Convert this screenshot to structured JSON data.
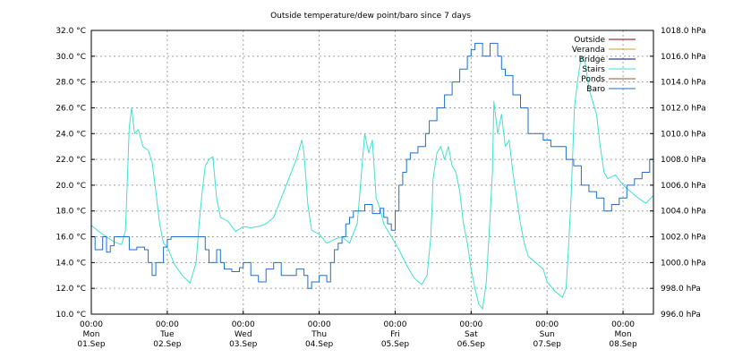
{
  "chart_data": {
    "type": "line",
    "title": "Outside temperature/dew point/baro since 7 days",
    "y_left": {
      "ticks": [
        10,
        12,
        14,
        16,
        18,
        20,
        22,
        24,
        26,
        28,
        30,
        32
      ],
      "tick_labels": [
        "10.0 °C",
        "12.0 °C",
        "14.0 °C",
        "16.0 °C",
        "18.0 °C",
        "20.0 °C",
        "22.0 °C",
        "24.0 °C",
        "26.0 °C",
        "28.0 °C",
        "30.0 °C",
        "32.0 °C"
      ],
      "range": [
        10,
        32
      ]
    },
    "y_right": {
      "ticks": [
        996,
        998,
        1000,
        1002,
        1004,
        1006,
        1008,
        1010,
        1012,
        1014,
        1016,
        1018
      ],
      "tick_labels": [
        "996.0 hPa",
        "998.0 hPa",
        "1000.0 hPa",
        "1002.0 hPa",
        "1004.0 hPa",
        "1006.0 hPa",
        "1008.0 hPa",
        "1010.0 hPa",
        "1012.0 hPa",
        "1014.0 hPa",
        "1016.0 hPa",
        "1018.0 hPa"
      ],
      "range": [
        996,
        1018
      ]
    },
    "x": {
      "range_days": [
        0,
        7.4
      ],
      "ticks": [
        {
          "day": 0,
          "time": "00:00",
          "weekday": "Mon",
          "date": "01.Sep"
        },
        {
          "day": 1,
          "time": "00:00",
          "weekday": "Tue",
          "date": "02.Sep"
        },
        {
          "day": 2,
          "time": "00:00",
          "weekday": "Wed",
          "date": "03.Sep"
        },
        {
          "day": 3,
          "time": "00:00",
          "weekday": "Thu",
          "date": "04.Sep"
        },
        {
          "day": 4,
          "time": "00:00",
          "weekday": "Fri",
          "date": "05.Sep"
        },
        {
          "day": 5,
          "time": "00:00",
          "weekday": "Sat",
          "date": "06.Sep"
        },
        {
          "day": 6,
          "time": "00:00",
          "weekday": "Sun",
          "date": "07.Sep"
        },
        {
          "day": 7,
          "time": "00:00",
          "weekday": "Mon",
          "date": "08.Sep"
        }
      ]
    },
    "legend": {
      "placement": "top-right",
      "entries": [
        {
          "name": "Outside",
          "color": "#8b0000"
        },
        {
          "name": "Veranda",
          "color": "#d4a017"
        },
        {
          "name": "Bridge",
          "color": "#00008b"
        },
        {
          "name": "Stairs",
          "color": "#40e0d0"
        },
        {
          "name": "Ponds",
          "color": "#a0522d"
        },
        {
          "name": "Baro",
          "color": "#1e6fcf"
        }
      ]
    },
    "grid": true,
    "series": [
      {
        "name": "Stairs",
        "axis": "left",
        "color": "#40e0d0",
        "points": [
          [
            0.0,
            16.9
          ],
          [
            0.1,
            16.4
          ],
          [
            0.2,
            16.0
          ],
          [
            0.3,
            15.6
          ],
          [
            0.4,
            15.4
          ],
          [
            0.45,
            16.5
          ],
          [
            0.5,
            24.5
          ],
          [
            0.53,
            26.0
          ],
          [
            0.57,
            24.0
          ],
          [
            0.62,
            24.3
          ],
          [
            0.68,
            23.0
          ],
          [
            0.75,
            22.7
          ],
          [
            0.8,
            21.8
          ],
          [
            0.85,
            19.5
          ],
          [
            0.9,
            17.0
          ],
          [
            0.95,
            15.5
          ],
          [
            1.0,
            15.2
          ],
          [
            1.05,
            14.5
          ],
          [
            1.1,
            13.8
          ],
          [
            1.2,
            13.0
          ],
          [
            1.3,
            12.4
          ],
          [
            1.38,
            14.0
          ],
          [
            1.42,
            17.0
          ],
          [
            1.46,
            19.5
          ],
          [
            1.5,
            21.5
          ],
          [
            1.55,
            22.0
          ],
          [
            1.6,
            22.2
          ],
          [
            1.65,
            19.0
          ],
          [
            1.7,
            17.5
          ],
          [
            1.8,
            17.2
          ],
          [
            1.9,
            16.4
          ],
          [
            2.0,
            16.8
          ],
          [
            2.1,
            16.7
          ],
          [
            2.2,
            16.8
          ],
          [
            2.3,
            17.0
          ],
          [
            2.4,
            17.5
          ],
          [
            2.5,
            19.0
          ],
          [
            2.6,
            20.5
          ],
          [
            2.7,
            22.0
          ],
          [
            2.77,
            23.5
          ],
          [
            2.8,
            22.5
          ],
          [
            2.85,
            18.5
          ],
          [
            2.9,
            16.5
          ],
          [
            3.0,
            16.2
          ],
          [
            3.1,
            15.5
          ],
          [
            3.2,
            15.8
          ],
          [
            3.3,
            16.0
          ],
          [
            3.4,
            15.5
          ],
          [
            3.5,
            17.0
          ],
          [
            3.53,
            19.0
          ],
          [
            3.57,
            22.0
          ],
          [
            3.6,
            24.0
          ],
          [
            3.65,
            22.5
          ],
          [
            3.7,
            23.5
          ],
          [
            3.75,
            19.0
          ],
          [
            3.8,
            18.2
          ],
          [
            3.85,
            17.0
          ],
          [
            3.95,
            16.0
          ],
          [
            4.05,
            15.0
          ],
          [
            4.15,
            13.8
          ],
          [
            4.25,
            12.8
          ],
          [
            4.35,
            12.3
          ],
          [
            4.42,
            13.0
          ],
          [
            4.47,
            16.0
          ],
          [
            4.5,
            20.5
          ],
          [
            4.55,
            22.5
          ],
          [
            4.6,
            23.0
          ],
          [
            4.65,
            22.0
          ],
          [
            4.7,
            23.0
          ],
          [
            4.75,
            21.5
          ],
          [
            4.8,
            21.0
          ],
          [
            4.85,
            19.5
          ],
          [
            4.9,
            17.0
          ],
          [
            4.95,
            15.5
          ],
          [
            5.0,
            13.5
          ],
          [
            5.05,
            12.0
          ],
          [
            5.1,
            10.8
          ],
          [
            5.15,
            10.4
          ],
          [
            5.2,
            12.5
          ],
          [
            5.25,
            17.5
          ],
          [
            5.28,
            21.0
          ],
          [
            5.3,
            26.5
          ],
          [
            5.35,
            24.0
          ],
          [
            5.4,
            25.5
          ],
          [
            5.45,
            23.0
          ],
          [
            5.5,
            23.5
          ],
          [
            5.55,
            21.0
          ],
          [
            5.6,
            19.0
          ],
          [
            5.65,
            17.0
          ],
          [
            5.7,
            15.5
          ],
          [
            5.75,
            14.5
          ],
          [
            5.85,
            14.0
          ],
          [
            5.95,
            13.5
          ],
          [
            6.0,
            12.5
          ],
          [
            6.1,
            11.8
          ],
          [
            6.2,
            11.3
          ],
          [
            6.25,
            12.0
          ],
          [
            6.28,
            15.0
          ],
          [
            6.32,
            19.5
          ],
          [
            6.36,
            26.0
          ],
          [
            6.4,
            28.0
          ],
          [
            6.45,
            30.0
          ],
          [
            6.5,
            29.5
          ],
          [
            6.55,
            27.5
          ],
          [
            6.6,
            26.5
          ],
          [
            6.65,
            25.5
          ],
          [
            6.7,
            23.0
          ],
          [
            6.75,
            21.0
          ],
          [
            6.8,
            20.5
          ],
          [
            6.9,
            20.8
          ],
          [
            7.0,
            20.0
          ],
          [
            7.1,
            19.5
          ],
          [
            7.2,
            19.0
          ],
          [
            7.3,
            18.6
          ],
          [
            7.4,
            19.2
          ]
        ]
      },
      {
        "name": "Baro",
        "axis": "right",
        "color": "#1e6fcf",
        "step": true,
        "points": [
          [
            0.0,
            1002.0
          ],
          [
            0.05,
            1001.0
          ],
          [
            0.15,
            1002.0
          ],
          [
            0.2,
            1000.8
          ],
          [
            0.25,
            1001.3
          ],
          [
            0.3,
            1002.0
          ],
          [
            0.4,
            1002.0
          ],
          [
            0.5,
            1001.0
          ],
          [
            0.6,
            1001.2
          ],
          [
            0.7,
            1001.0
          ],
          [
            0.75,
            1000.0
          ],
          [
            0.8,
            999.0
          ],
          [
            0.85,
            1000.0
          ],
          [
            0.95,
            1001.2
          ],
          [
            1.0,
            1001.8
          ],
          [
            1.05,
            1002.0
          ],
          [
            1.2,
            1002.0
          ],
          [
            1.3,
            1002.0
          ],
          [
            1.4,
            1002.0
          ],
          [
            1.5,
            1001.0
          ],
          [
            1.55,
            1000.0
          ],
          [
            1.65,
            1001.0
          ],
          [
            1.7,
            1000.0
          ],
          [
            1.75,
            999.5
          ],
          [
            1.85,
            999.3
          ],
          [
            1.95,
            999.6
          ],
          [
            2.0,
            1000.0
          ],
          [
            2.1,
            999.0
          ],
          [
            2.2,
            998.5
          ],
          [
            2.3,
            999.5
          ],
          [
            2.4,
            1000.0
          ],
          [
            2.5,
            999.0
          ],
          [
            2.6,
            999.0
          ],
          [
            2.7,
            999.5
          ],
          [
            2.8,
            999.0
          ],
          [
            2.85,
            998.0
          ],
          [
            2.9,
            998.5
          ],
          [
            3.0,
            999.0
          ],
          [
            3.1,
            998.5
          ],
          [
            3.15,
            1000.0
          ],
          [
            3.2,
            1001.0
          ],
          [
            3.25,
            1001.5
          ],
          [
            3.3,
            1002.0
          ],
          [
            3.35,
            1003.0
          ],
          [
            3.4,
            1003.5
          ],
          [
            3.45,
            1004.0
          ],
          [
            3.55,
            1004.0
          ],
          [
            3.6,
            1004.5
          ],
          [
            3.7,
            1003.8
          ],
          [
            3.8,
            1004.2
          ],
          [
            3.85,
            1003.5
          ],
          [
            3.9,
            1003.0
          ],
          [
            3.95,
            1002.5
          ],
          [
            4.0,
            1004.0
          ],
          [
            4.05,
            1006.0
          ],
          [
            4.1,
            1007.0
          ],
          [
            4.15,
            1008.0
          ],
          [
            4.2,
            1008.5
          ],
          [
            4.3,
            1009.0
          ],
          [
            4.4,
            1010.0
          ],
          [
            4.45,
            1011.0
          ],
          [
            4.55,
            1012.0
          ],
          [
            4.65,
            1013.0
          ],
          [
            4.75,
            1014.0
          ],
          [
            4.85,
            1015.0
          ],
          [
            4.95,
            1016.0
          ],
          [
            5.0,
            1016.5
          ],
          [
            5.05,
            1017.0
          ],
          [
            5.15,
            1016.0
          ],
          [
            5.25,
            1017.0
          ],
          [
            5.35,
            1016.0
          ],
          [
            5.4,
            1015.0
          ],
          [
            5.45,
            1014.5
          ],
          [
            5.55,
            1013.0
          ],
          [
            5.65,
            1012.0
          ],
          [
            5.75,
            1010.0
          ],
          [
            5.85,
            1010.0
          ],
          [
            5.95,
            1009.5
          ],
          [
            6.05,
            1009.0
          ],
          [
            6.15,
            1009.0
          ],
          [
            6.25,
            1008.0
          ],
          [
            6.35,
            1007.5
          ],
          [
            6.45,
            1006.0
          ],
          [
            6.55,
            1005.5
          ],
          [
            6.65,
            1005.0
          ],
          [
            6.75,
            1004.0
          ],
          [
            6.85,
            1004.5
          ],
          [
            6.95,
            1005.0
          ],
          [
            7.05,
            1006.0
          ],
          [
            7.15,
            1006.5
          ],
          [
            7.25,
            1007.0
          ],
          [
            7.35,
            1008.0
          ],
          [
            7.4,
            1008.0
          ]
        ]
      }
    ]
  }
}
